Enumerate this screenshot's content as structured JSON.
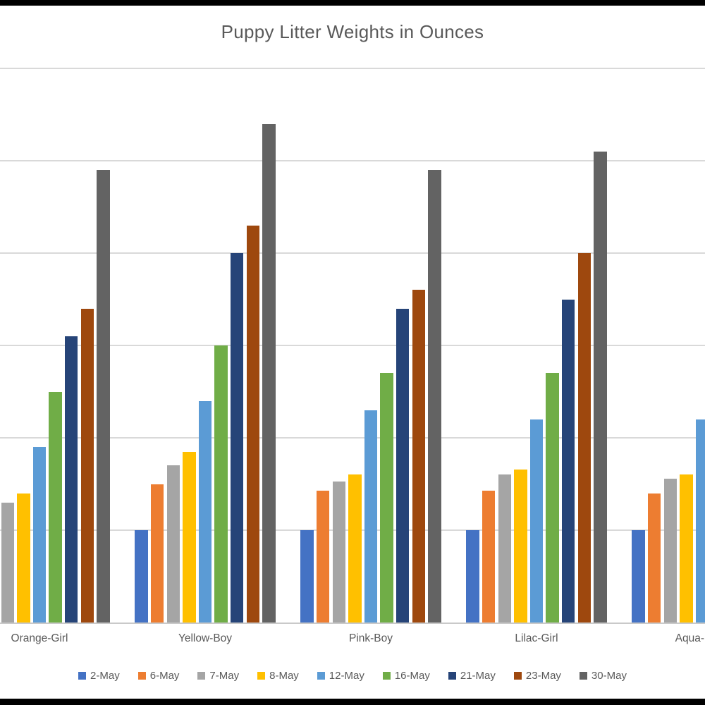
{
  "chart_title": "Puppy Litter Weights in Ounces",
  "chart_data": {
    "type": "bar",
    "title": "Puppy Litter Weights in Ounces",
    "categories": [
      "Orange-Girl",
      "Yellow-Boy",
      "Pink-Boy",
      "Lilac-Girl",
      "Aqua-"
    ],
    "series": [
      {
        "name": "2-May",
        "color": "#4472C4",
        "values": [
          null,
          10,
          10,
          10,
          10
        ]
      },
      {
        "name": "6-May",
        "color": "#ED7D31",
        "values": [
          null,
          15,
          14.3,
          14.3,
          14
        ]
      },
      {
        "name": "7-May",
        "color": "#A5A5A5",
        "values": [
          13,
          17,
          15.3,
          16,
          15.6
        ]
      },
      {
        "name": "8-May",
        "color": "#FFC000",
        "values": [
          14,
          18.5,
          16,
          16.6,
          16
        ]
      },
      {
        "name": "12-May",
        "color": "#5B9BD5",
        "values": [
          19,
          24,
          23,
          22,
          22
        ]
      },
      {
        "name": "16-May",
        "color": "#70AD47",
        "values": [
          25,
          30,
          27,
          27,
          null
        ]
      },
      {
        "name": "21-May",
        "color": "#264478",
        "values": [
          31,
          40,
          34,
          35,
          null
        ]
      },
      {
        "name": "23-May",
        "color": "#9E480E",
        "values": [
          34,
          43,
          36,
          40,
          null
        ]
      },
      {
        "name": "30-May",
        "color": "#636363",
        "values": [
          49,
          54,
          49,
          51,
          null
        ]
      }
    ],
    "ylabel": "",
    "xlabel": "",
    "ylim": [
      0,
      60
    ],
    "grid_step": 10,
    "grid_on": true,
    "value_axis_labels_visible": false,
    "legend_position": "bottom",
    "note_crop": "left and right edges of plot are cut off by the viewport"
  },
  "colors": {
    "title_text": "#595959",
    "axis_text": "#595959",
    "gridline": "#D9D9D9",
    "axis_line": "#C9C9C9",
    "background": "#FFFFFF",
    "frame_bars": "#000000"
  }
}
